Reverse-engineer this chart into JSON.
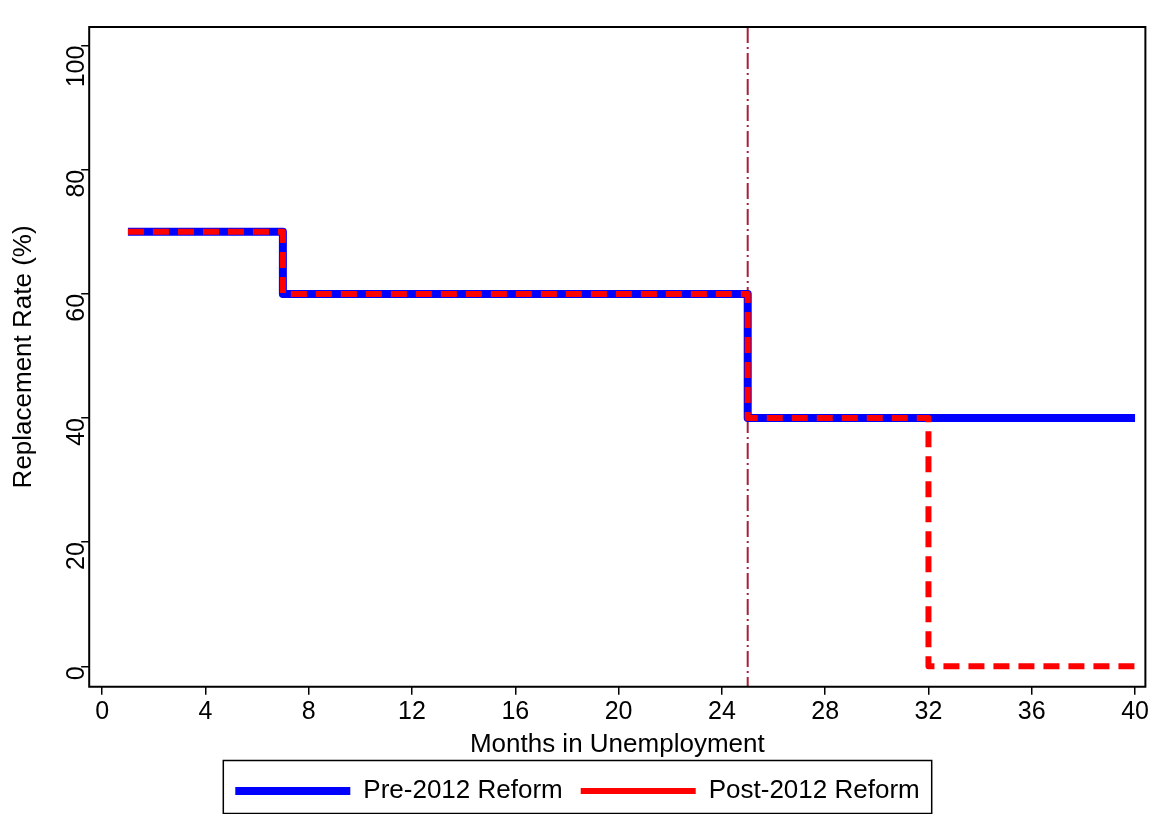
{
  "chart_data": {
    "type": "step",
    "xlabel": "Months in Unemployment",
    "ylabel": "Replacement Rate (%)",
    "xlim": [
      -0.5,
      40.4
    ],
    "xticks": [
      0,
      4,
      8,
      12,
      16,
      20,
      24,
      28,
      32,
      36,
      40
    ],
    "ylim": [
      -3.3,
      103
    ],
    "yticks": [
      0,
      20,
      40,
      60,
      80,
      100
    ],
    "grid": false,
    "legend": "bottom",
    "marker": "none",
    "ref_lines": [
      {
        "axis": "x",
        "value": 25,
        "color": "#a5203a",
        "line_style": "dashdot"
      }
    ],
    "series": [
      {
        "name": "Pre-2012 Reform",
        "color": "#0000ff",
        "line_style": "solid",
        "x": [
          1,
          7,
          25,
          40
        ],
        "values": [
          70,
          60,
          40,
          40
        ]
      },
      {
        "name": "Post-2012 Reform",
        "color": "#ff0000",
        "line_style": "dashed",
        "x": [
          1,
          7,
          25,
          32,
          40
        ],
        "values": [
          70,
          60,
          40,
          0,
          0
        ]
      }
    ]
  }
}
